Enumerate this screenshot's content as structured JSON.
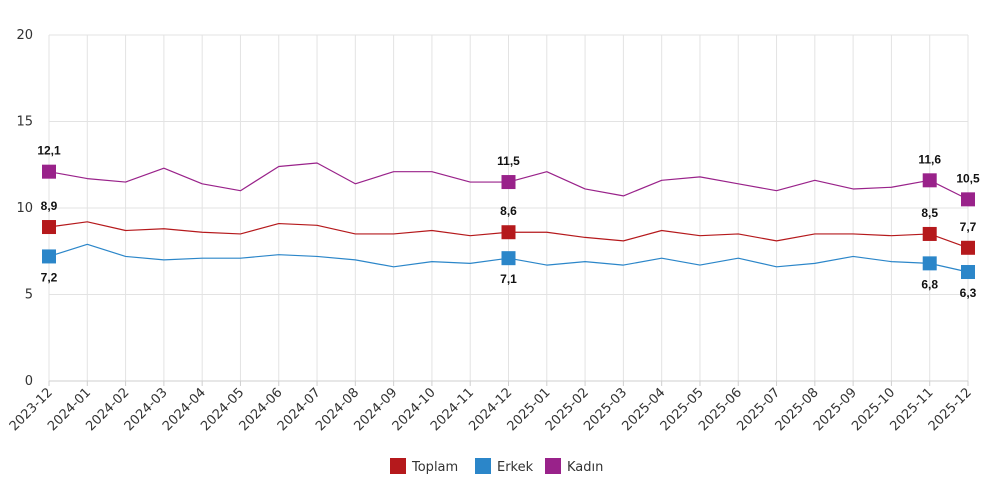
{
  "chart_data": {
    "type": "line",
    "title": "",
    "xlabel": "",
    "ylabel": "",
    "ylim": [
      0,
      20
    ],
    "yticks": [
      0,
      5,
      10,
      15,
      20
    ],
    "grid": true,
    "legend_position": "bottom-center",
    "categories": [
      "2023-12",
      "2024-01",
      "2024-02",
      "2024-03",
      "2024-04",
      "2024-05",
      "2024-06",
      "2024-07",
      "2024-08",
      "2024-09",
      "2024-10",
      "2024-11",
      "2024-12",
      "2025-01",
      "2025-02",
      "2025-03",
      "2025-04",
      "2025-05",
      "2025-06",
      "2025-07",
      "2025-08",
      "2025-09",
      "2025-10",
      "2025-11",
      "2025-12"
    ],
    "series": [
      {
        "name": "Toplam",
        "color": "#b5191c",
        "values": [
          8.9,
          9.2,
          8.7,
          8.8,
          8.6,
          8.5,
          9.1,
          9.0,
          8.5,
          8.5,
          8.7,
          8.4,
          8.6,
          8.6,
          8.3,
          8.1,
          8.7,
          8.4,
          8.5,
          8.1,
          8.5,
          8.5,
          8.4,
          8.5,
          7.7
        ],
        "labels": [
          {
            "index": 0,
            "text": "8,9",
            "pos": "above"
          },
          {
            "index": 12,
            "text": "8,6",
            "pos": "above"
          },
          {
            "index": 23,
            "text": "8,5",
            "pos": "above"
          },
          {
            "index": 24,
            "text": "7,7",
            "pos": "above"
          }
        ]
      },
      {
        "name": "Erkek",
        "color": "#2b86c9",
        "values": [
          7.2,
          7.9,
          7.2,
          7.0,
          7.1,
          7.1,
          7.3,
          7.2,
          7.0,
          6.6,
          6.9,
          6.8,
          7.1,
          6.7,
          6.9,
          6.7,
          7.1,
          6.7,
          7.1,
          6.6,
          6.8,
          7.2,
          6.9,
          6.8,
          6.3
        ],
        "labels": [
          {
            "index": 0,
            "text": "7,2",
            "pos": "below"
          },
          {
            "index": 12,
            "text": "7,1",
            "pos": "below"
          },
          {
            "index": 23,
            "text": "6,8",
            "pos": "below"
          },
          {
            "index": 24,
            "text": "6,3",
            "pos": "below"
          }
        ]
      },
      {
        "name": "Kadın",
        "color": "#99228a",
        "values": [
          12.1,
          11.7,
          11.5,
          12.3,
          11.4,
          11.0,
          12.4,
          12.6,
          11.4,
          12.1,
          12.1,
          11.5,
          11.5,
          12.1,
          11.1,
          10.7,
          11.6,
          11.8,
          11.4,
          11.0,
          11.6,
          11.1,
          11.2,
          11.6,
          10.5
        ],
        "labels": [
          {
            "index": 0,
            "text": "12,1",
            "pos": "above"
          },
          {
            "index": 12,
            "text": "11,5",
            "pos": "above"
          },
          {
            "index": 23,
            "text": "11,6",
            "pos": "above"
          },
          {
            "index": 24,
            "text": "10,5",
            "pos": "above"
          }
        ]
      }
    ]
  }
}
